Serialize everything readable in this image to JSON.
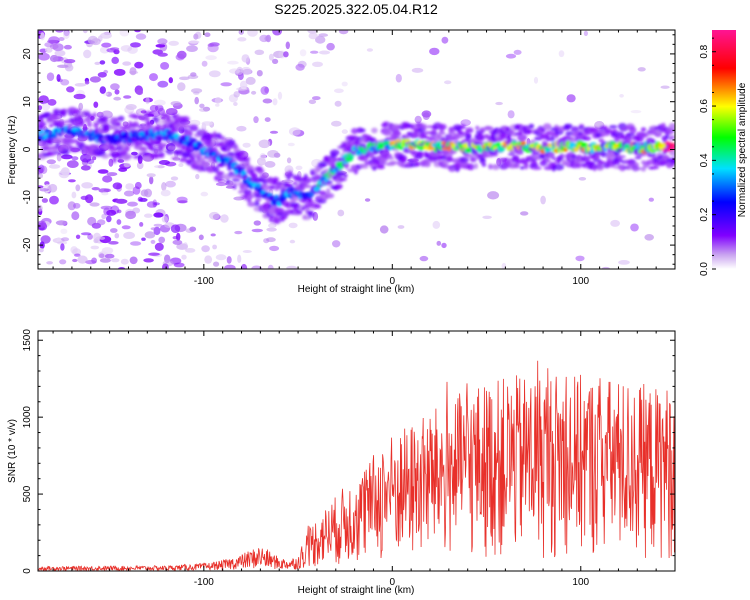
{
  "title": "S225.2025.322.05.04.R12",
  "chart_data": [
    {
      "type": "heatmap",
      "xlabel": "Height of straight line (km)",
      "ylabel": "Frequency (Hz)",
      "xlim": [
        -188,
        150
      ],
      "ylim": [
        -25,
        25
      ],
      "xticks": [
        "-100",
        "0",
        "100"
      ],
      "yticks": [
        "20",
        "10",
        "0",
        "-10",
        "-20"
      ],
      "colorbar": {
        "label": "Normalized spectral amplitude",
        "range": [
          0.0,
          0.88
        ],
        "ticks": [
          "0.0",
          "0.2",
          "0.4",
          "0.6",
          "0.8"
        ],
        "colormap": [
          "#ffffff",
          "#c9a3f0",
          "#8000ff",
          "#0000ff",
          "#00e0ff",
          "#00ff00",
          "#ffff00",
          "#ff0000",
          "#ff1493"
        ]
      },
      "ridge": [
        [
          -185,
          3
        ],
        [
          -170,
          4
        ],
        [
          -160,
          3
        ],
        [
          -150,
          2
        ],
        [
          -140,
          2.5
        ],
        [
          -130,
          3
        ],
        [
          -120,
          3
        ],
        [
          -110,
          2
        ],
        [
          -100,
          0
        ],
        [
          -95,
          -1
        ],
        [
          -90,
          -2
        ],
        [
          -85,
          -3
        ],
        [
          -80,
          -5
        ],
        [
          -75,
          -7
        ],
        [
          -70,
          -8.5
        ],
        [
          -65,
          -10
        ],
        [
          -60,
          -11
        ],
        [
          -55,
          -9
        ],
        [
          -50,
          -9
        ],
        [
          -45,
          -10
        ],
        [
          -40,
          -8
        ],
        [
          -35,
          -6
        ],
        [
          -30,
          -4
        ],
        [
          -25,
          -2
        ],
        [
          -20,
          -0.5
        ],
        [
          -15,
          0
        ],
        [
          -10,
          0.5
        ],
        [
          -5,
          0.8
        ],
        [
          0,
          1
        ],
        [
          10,
          1
        ],
        [
          20,
          0.8
        ],
        [
          30,
          0.5
        ],
        [
          40,
          0.3
        ],
        [
          50,
          0.5
        ],
        [
          60,
          0.8
        ],
        [
          70,
          0.5
        ],
        [
          80,
          0.3
        ],
        [
          90,
          0.5
        ],
        [
          100,
          0.5
        ],
        [
          110,
          0.3
        ],
        [
          120,
          0.5
        ],
        [
          130,
          0.3
        ],
        [
          140,
          0.5
        ],
        [
          150,
          0.5
        ]
      ]
    },
    {
      "type": "line",
      "xlabel": "Height of straight line (km)",
      "ylabel": "SNR (10 * v/v)",
      "xlim": [
        -188,
        150
      ],
      "ylim": [
        0,
        1560
      ],
      "xticks": [
        "-100",
        "0",
        "100"
      ],
      "yticks": [
        "1500",
        "1000",
        "500",
        "0"
      ],
      "color": "#e8302a",
      "series": [
        {
          "envelope": [
            [
              -188,
              30
            ],
            [
              -120,
              35
            ],
            [
              -100,
              50
            ],
            [
              -90,
              70
            ],
            [
              -80,
              110
            ],
            [
              -70,
              170
            ],
            [
              -60,
              90
            ],
            [
              -55,
              80
            ],
            [
              -50,
              100
            ],
            [
              -45,
              280
            ],
            [
              -35,
              420
            ],
            [
              -25,
              560
            ],
            [
              -15,
              650
            ],
            [
              -10,
              760
            ],
            [
              -5,
              850
            ],
            [
              0,
              900
            ],
            [
              10,
              960
            ],
            [
              20,
              1050
            ],
            [
              30,
              1100
            ],
            [
              40,
              1200
            ],
            [
              55,
              1250
            ],
            [
              70,
              1280
            ],
            [
              85,
              1300
            ],
            [
              100,
              1280
            ],
            [
              120,
              1250
            ],
            [
              140,
              1200
            ],
            [
              150,
              1220
            ]
          ]
        }
      ]
    }
  ]
}
